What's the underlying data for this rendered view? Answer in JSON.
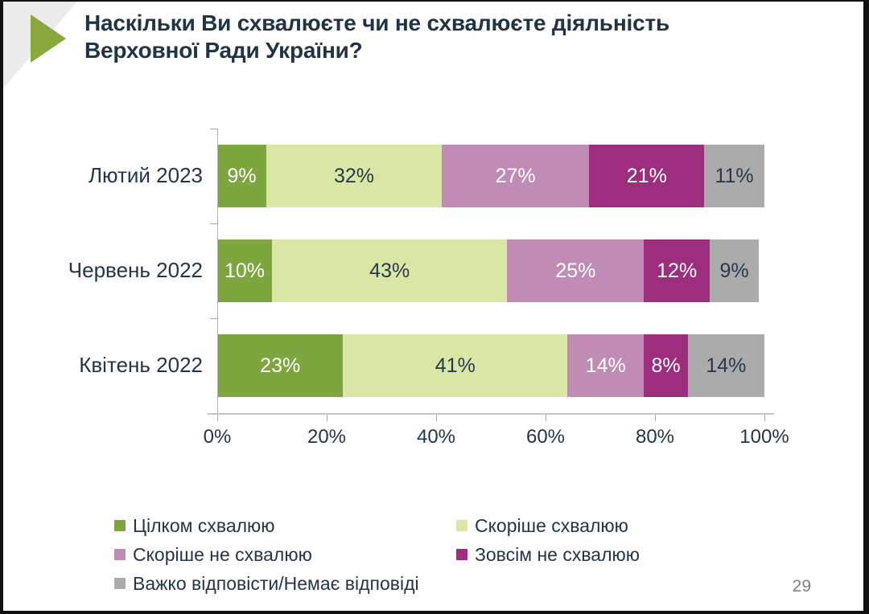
{
  "slide": {
    "title_line1": "Наскільки Ви схвалюєте чи не схвалюєте діяльність",
    "title_line2": "Верховної Ради України?",
    "page_number": "29"
  },
  "colors": {
    "accent_arrow": "#8aa93c",
    "corner_wedge": "#ebebeb",
    "title_text": "#203447",
    "axis_line": "#b3b3b3",
    "page_number_text": "#808080"
  },
  "chart_data": {
    "type": "bar",
    "stacked": true,
    "orientation": "horizontal",
    "title": "Наскільки Ви схвалюєте чи не схвалюєте діяльність Верховної Ради України?",
    "categories": [
      "Лютий 2023",
      "Червень 2022",
      "Квітень 2022"
    ],
    "series": [
      {
        "name": "Цілком схвалюю",
        "color": "#7ea63e",
        "label_color": "#ffffff",
        "values": [
          9,
          10,
          23
        ]
      },
      {
        "name": "Скоріше схвалюю",
        "color": "#d9e6a6",
        "label_color": "#28394a",
        "values": [
          32,
          43,
          41
        ]
      },
      {
        "name": "Скоріше не схвалюю",
        "color": "#c08cb6",
        "label_color": "#ffffff",
        "values": [
          27,
          25,
          14
        ]
      },
      {
        "name": "Зовсім не схвалюю",
        "color": "#9d2e7d",
        "label_color": "#ffffff",
        "values": [
          21,
          12,
          8
        ]
      },
      {
        "name": "Важко відповісти/Немає відповіді",
        "color": "#ababab",
        "label_color": "#28394a",
        "values": [
          11,
          9,
          14
        ]
      }
    ],
    "value_suffix": "%",
    "x_ticks": [
      "0%",
      "20%",
      "40%",
      "60%",
      "80%",
      "100%"
    ],
    "xlim": [
      0,
      100
    ],
    "grid": false,
    "legend_position": "bottom"
  }
}
